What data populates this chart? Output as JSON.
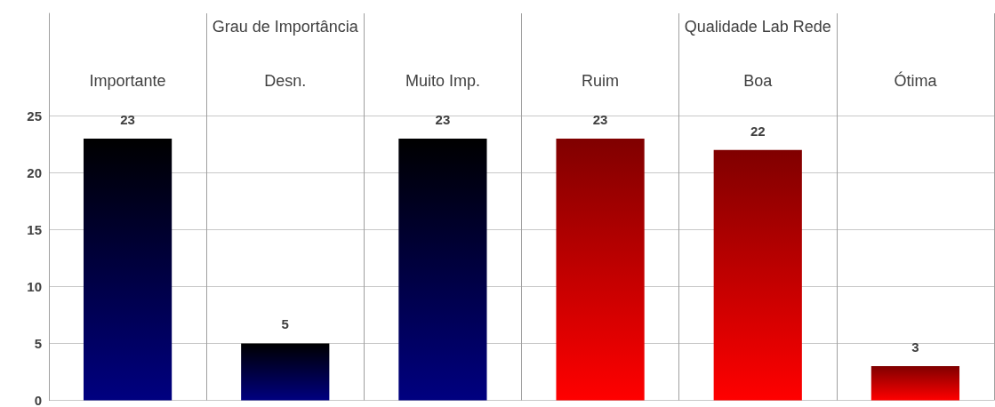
{
  "chart_data": {
    "type": "bar",
    "categories": [
      "Importante",
      "Desn.",
      "Muito Imp.",
      "Ruim",
      "Boa",
      "Ótima"
    ],
    "values": [
      23,
      5,
      23,
      23,
      22,
      3
    ],
    "colors": [
      "#000080",
      "#000080",
      "#000080",
      "#ff0000",
      "#ff0000",
      "#ff0000"
    ],
    "annotations": [
      "Grau de Importância",
      "Qualidade Lab Rede"
    ],
    "ylim": [
      0,
      34
    ],
    "yticks": [
      0,
      5,
      10,
      15,
      20,
      25
    ],
    "grid": true,
    "data_labels": true
  }
}
